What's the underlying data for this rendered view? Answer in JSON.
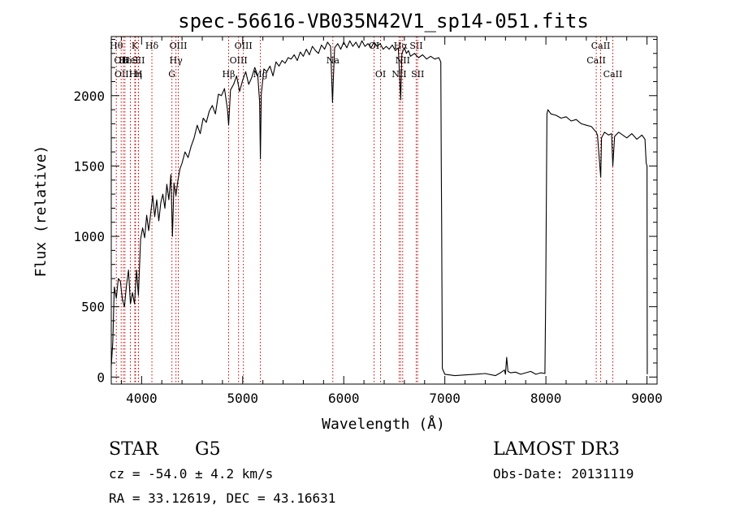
{
  "chart_data": {
    "type": "line",
    "title": "spec-56616-VB035N42V1_sp14-051.fits",
    "xlabel": "Wavelength (Å)",
    "ylabel": "Flux (relative)",
    "xlim": [
      3700,
      9100
    ],
    "ylim": [
      -50,
      2420
    ],
    "xticks": [
      4000,
      5000,
      6000,
      7000,
      8000,
      9000
    ],
    "yticks": [
      0,
      500,
      1000,
      1500,
      2000
    ],
    "x_minor_step": 200,
    "y_minor_step": 100,
    "line_color": "#000000",
    "marker_color": "#cc0000",
    "series": [
      {
        "name": "flux",
        "points": [
          [
            3700,
            80
          ],
          [
            3715,
            250
          ],
          [
            3730,
            640
          ],
          [
            3750,
            560
          ],
          [
            3770,
            700
          ],
          [
            3790,
            680
          ],
          [
            3810,
            550
          ],
          [
            3830,
            500
          ],
          [
            3850,
            650
          ],
          [
            3870,
            760
          ],
          [
            3890,
            520
          ],
          [
            3910,
            600
          ],
          [
            3930,
            520
          ],
          [
            3950,
            760
          ],
          [
            3968,
            580
          ],
          [
            3990,
            980
          ],
          [
            4010,
            1060
          ],
          [
            4030,
            990
          ],
          [
            4050,
            1150
          ],
          [
            4070,
            1040
          ],
          [
            4090,
            1160
          ],
          [
            4110,
            1290
          ],
          [
            4130,
            1140
          ],
          [
            4150,
            1260
          ],
          [
            4170,
            1110
          ],
          [
            4190,
            1240
          ],
          [
            4210,
            1300
          ],
          [
            4230,
            1200
          ],
          [
            4250,
            1370
          ],
          [
            4270,
            1260
          ],
          [
            4290,
            1440
          ],
          [
            4305,
            1000
          ],
          [
            4320,
            1380
          ],
          [
            4340,
            1290
          ],
          [
            4360,
            1400
          ],
          [
            4380,
            1480
          ],
          [
            4400,
            1520
          ],
          [
            4430,
            1600
          ],
          [
            4460,
            1560
          ],
          [
            4490,
            1640
          ],
          [
            4520,
            1700
          ],
          [
            4550,
            1790
          ],
          [
            4580,
            1730
          ],
          [
            4610,
            1840
          ],
          [
            4640,
            1810
          ],
          [
            4670,
            1890
          ],
          [
            4700,
            1930
          ],
          [
            4730,
            1870
          ],
          [
            4760,
            2010
          ],
          [
            4790,
            2000
          ],
          [
            4820,
            2050
          ],
          [
            4850,
            1900
          ],
          [
            4861,
            1790
          ],
          [
            4880,
            2040
          ],
          [
            4910,
            2080
          ],
          [
            4940,
            2140
          ],
          [
            4970,
            2030
          ],
          [
            5000,
            2110
          ],
          [
            5030,
            2170
          ],
          [
            5060,
            2080
          ],
          [
            5090,
            2130
          ],
          [
            5120,
            2200
          ],
          [
            5150,
            2140
          ],
          [
            5167,
            1960
          ],
          [
            5175,
            1550
          ],
          [
            5184,
            2010
          ],
          [
            5210,
            2190
          ],
          [
            5240,
            2170
          ],
          [
            5270,
            2210
          ],
          [
            5300,
            2140
          ],
          [
            5330,
            2240
          ],
          [
            5360,
            2210
          ],
          [
            5390,
            2250
          ],
          [
            5420,
            2230
          ],
          [
            5450,
            2270
          ],
          [
            5480,
            2260
          ],
          [
            5510,
            2290
          ],
          [
            5540,
            2250
          ],
          [
            5570,
            2310
          ],
          [
            5600,
            2280
          ],
          [
            5630,
            2330
          ],
          [
            5660,
            2290
          ],
          [
            5690,
            2350
          ],
          [
            5720,
            2320
          ],
          [
            5750,
            2300
          ],
          [
            5780,
            2360
          ],
          [
            5810,
            2330
          ],
          [
            5840,
            2380
          ],
          [
            5870,
            2350
          ],
          [
            5889,
            1950
          ],
          [
            5896,
            2100
          ],
          [
            5910,
            2340
          ],
          [
            5940,
            2370
          ],
          [
            5970,
            2330
          ],
          [
            6000,
            2380
          ],
          [
            6030,
            2340
          ],
          [
            6060,
            2390
          ],
          [
            6090,
            2350
          ],
          [
            6120,
            2380
          ],
          [
            6150,
            2340
          ],
          [
            6180,
            2390
          ],
          [
            6210,
            2350
          ],
          [
            6240,
            2370
          ],
          [
            6270,
            2340
          ],
          [
            6300,
            2380
          ],
          [
            6330,
            2350
          ],
          [
            6360,
            2370
          ],
          [
            6390,
            2330
          ],
          [
            6420,
            2350
          ],
          [
            6450,
            2330
          ],
          [
            6480,
            2360
          ],
          [
            6510,
            2320
          ],
          [
            6540,
            2340
          ],
          [
            6563,
            1970
          ],
          [
            6575,
            2300
          ],
          [
            6600,
            2340
          ],
          [
            6620,
            2300
          ],
          [
            6640,
            2320
          ],
          [
            6660,
            2280
          ],
          [
            6700,
            2300
          ],
          [
            6740,
            2270
          ],
          [
            6780,
            2290
          ],
          [
            6820,
            2260
          ],
          [
            6860,
            2280
          ],
          [
            6900,
            2260
          ],
          [
            6940,
            2270
          ],
          [
            6960,
            2240
          ],
          [
            6965,
            1500
          ],
          [
            6968,
            1150
          ],
          [
            6975,
            60
          ],
          [
            7000,
            20
          ],
          [
            7100,
            10
          ],
          [
            7200,
            15
          ],
          [
            7300,
            20
          ],
          [
            7400,
            25
          ],
          [
            7500,
            10
          ],
          [
            7550,
            30
          ],
          [
            7590,
            50
          ],
          [
            7600,
            20
          ],
          [
            7612,
            140
          ],
          [
            7625,
            40
          ],
          [
            7650,
            30
          ],
          [
            7700,
            35
          ],
          [
            7750,
            20
          ],
          [
            7800,
            30
          ],
          [
            7850,
            40
          ],
          [
            7900,
            20
          ],
          [
            7950,
            30
          ],
          [
            7990,
            25
          ],
          [
            7998,
            600
          ],
          [
            8003,
            1120
          ],
          [
            8010,
            1870
          ],
          [
            8020,
            1900
          ],
          [
            8050,
            1870
          ],
          [
            8100,
            1860
          ],
          [
            8150,
            1840
          ],
          [
            8200,
            1850
          ],
          [
            8250,
            1820
          ],
          [
            8300,
            1830
          ],
          [
            8350,
            1800
          ],
          [
            8400,
            1790
          ],
          [
            8450,
            1780
          ],
          [
            8498,
            1740
          ],
          [
            8510,
            1720
          ],
          [
            8542,
            1420
          ],
          [
            8550,
            1700
          ],
          [
            8580,
            1740
          ],
          [
            8620,
            1720
          ],
          [
            8650,
            1730
          ],
          [
            8662,
            1500
          ],
          [
            8680,
            1710
          ],
          [
            8720,
            1740
          ],
          [
            8760,
            1720
          ],
          [
            8800,
            1700
          ],
          [
            8850,
            1730
          ],
          [
            8900,
            1690
          ],
          [
            8950,
            1720
          ],
          [
            8980,
            1690
          ],
          [
            8992,
            1520
          ],
          [
            9000,
            1500
          ],
          [
            9003,
            20
          ]
        ]
      }
    ],
    "line_markers": [
      {
        "x": 3750,
        "label": "Hθ",
        "row": 0
      },
      {
        "x": 3798,
        "label": "OII",
        "row": 1
      },
      {
        "x": 3820,
        "label": "OIII",
        "row": 2
      },
      {
        "x": 3835,
        "label": "Hε",
        "row": 1
      },
      {
        "x": 3889,
        "label": "HeI",
        "row": 1
      },
      {
        "x": 3933,
        "label": "K",
        "row": 0
      },
      {
        "x": 3968,
        "label": "SII",
        "row": 1
      },
      {
        "x": 3940,
        "label": "Hη",
        "row": 2
      },
      {
        "x": 3970,
        "label": "H",
        "row": 2
      },
      {
        "x": 4102,
        "label": "Hδ",
        "row": 0
      },
      {
        "x": 4300,
        "label": "G",
        "row": 2
      },
      {
        "x": 4340,
        "label": "Hγ",
        "row": 1
      },
      {
        "x": 4363,
        "label": "OIII",
        "row": 0
      },
      {
        "x": 4861,
        "label": "Hβ",
        "row": 2
      },
      {
        "x": 4959,
        "label": "OIII",
        "row": 1
      },
      {
        "x": 5007,
        "label": "OIII",
        "row": 0
      },
      {
        "x": 5175,
        "label": "Mg",
        "row": 2
      },
      {
        "x": 5892,
        "label": "Na",
        "row": 1
      },
      {
        "x": 6300,
        "label": "OI",
        "row": 0
      },
      {
        "x": 6364,
        "label": "OI",
        "row": 2
      },
      {
        "x": 6548,
        "label": "NII",
        "row": 2
      },
      {
        "x": 6563,
        "label": "Hα",
        "row": 0
      },
      {
        "x": 6583,
        "label": "NII",
        "row": 1
      },
      {
        "x": 6717,
        "label": "SII",
        "row": 0
      },
      {
        "x": 6731,
        "label": "SII",
        "row": 2
      },
      {
        "x": 8498,
        "label": "CaII",
        "row": 1
      },
      {
        "x": 8542,
        "label": "CaII",
        "row": 0
      },
      {
        "x": 8662,
        "label": "CaII",
        "row": 2
      }
    ]
  },
  "info": {
    "object_class": "STAR",
    "subclass": "G5",
    "survey": "LAMOST DR3",
    "cz": "cz = -54.0 ± 4.2 km/s",
    "obs_date": "Obs-Date: 20131119",
    "coords": "RA =  33.12619, DEC =  43.16631"
  }
}
